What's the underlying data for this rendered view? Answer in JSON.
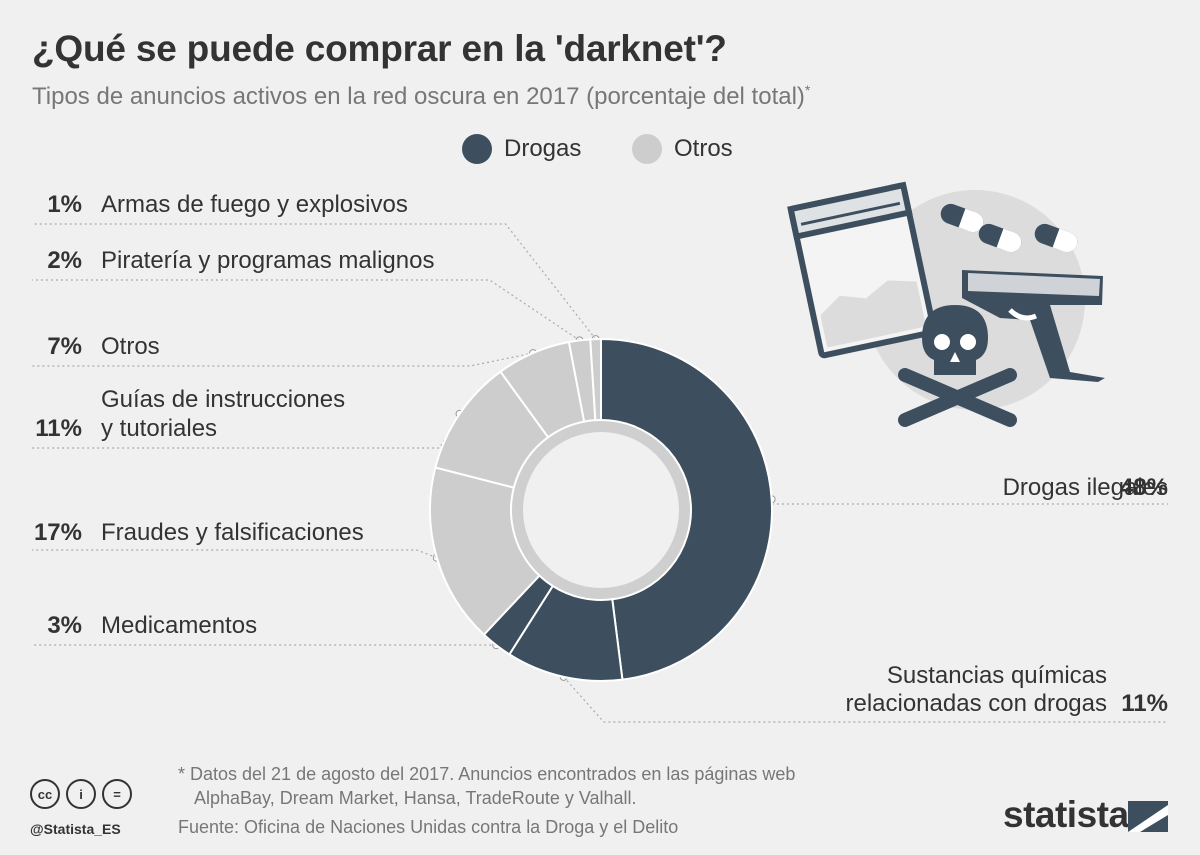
{
  "header": {
    "title": "¿Qué se puede comprar en la 'darknet'?",
    "subtitle": "Tipos de anuncios activos en la red oscura en 2017 (porcentaje del total)",
    "subtitle_mark": "*"
  },
  "legend": {
    "items": [
      {
        "label": "Drogas",
        "color": "#3d4f5f"
      },
      {
        "label": "Otros",
        "color": "#cdcdcd"
      }
    ]
  },
  "chart_data": {
    "type": "pie",
    "variant": "donut",
    "title": "¿Qué se puede comprar en la 'darknet'?",
    "subtitle": "Tipos de anuncios activos en la red oscura en 2017 (porcentaje del total)",
    "unit": "%",
    "series_colors": {
      "Drogas": "#3d4f5f",
      "Otros": "#cdcdcd"
    },
    "segments": [
      {
        "label": "Drogas ilegales",
        "value": 48,
        "value_label": "48%",
        "group": "Drogas",
        "side": "right"
      },
      {
        "label": "Sustancias químicas relacionadas con drogas",
        "label_lines": [
          "Sustancias químicas",
          "relacionadas con drogas"
        ],
        "value": 11,
        "value_label": "11%",
        "group": "Drogas",
        "side": "right"
      },
      {
        "label": "Medicamentos",
        "value": 3,
        "value_label": "3%",
        "group": "Drogas",
        "side": "left"
      },
      {
        "label": "Fraudes y falsificaciones",
        "value": 17,
        "value_label": "17%",
        "group": "Otros",
        "side": "left"
      },
      {
        "label": "Guías de instrucciones y tutoriales",
        "label_lines": [
          "Guías de instrucciones",
          "y tutoriales"
        ],
        "value": 11,
        "value_label": "11%",
        "group": "Otros",
        "side": "left"
      },
      {
        "label": "Otros",
        "value": 7,
        "value_label": "7%",
        "group": "Otros",
        "side": "left"
      },
      {
        "label": "Piratería y programas malignos",
        "value": 2,
        "value_label": "2%",
        "group": "Otros",
        "side": "left"
      },
      {
        "label": "Armas de fuego y explosivos",
        "value": 1,
        "value_label": "1%",
        "group": "Otros",
        "side": "left"
      }
    ]
  },
  "footer": {
    "footnote_line1": "* Datos del 21 de agosto del 2017. Anuncios encontrados en las páginas web",
    "footnote_line2": "AlphaBay, Dream Market, Hansa, TradeRoute y Valhall.",
    "source": "Fuente: Oficina de Naciones Unidas contra la Droga y el Delito",
    "handle": "@Statista_ES",
    "license_icons": [
      "cc-icon",
      "attribution-icon",
      "no-derivatives-icon"
    ],
    "license_glyphs": [
      "cc",
      "i",
      "="
    ],
    "brand": "statista"
  }
}
